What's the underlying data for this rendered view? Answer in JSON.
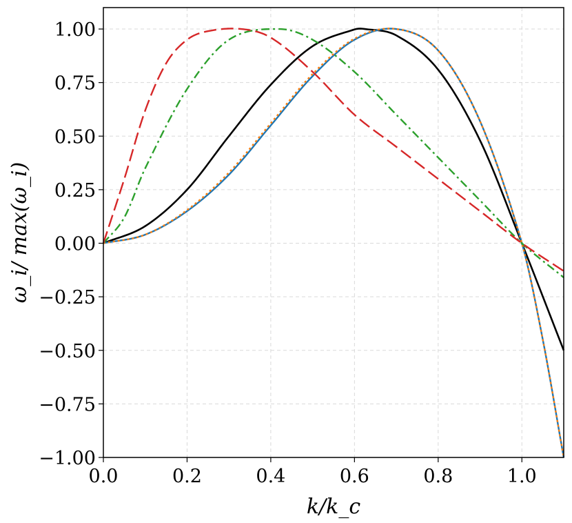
{
  "chart_data": {
    "type": "line",
    "title": "",
    "xlabel": "k/k_c",
    "ylabel": "ω_i/ max(ω_i)",
    "xlim": [
      0.0,
      1.1
    ],
    "ylim": [
      -1.0,
      1.1
    ],
    "xticks": [
      0.0,
      0.2,
      0.4,
      0.6,
      0.8,
      1.0
    ],
    "yticks": [
      -1.0,
      -0.75,
      -0.5,
      -0.25,
      0.0,
      0.25,
      0.5,
      0.75,
      1.0
    ],
    "xtick_labels": [
      "0.0",
      "0.2",
      "0.4",
      "0.6",
      "0.8",
      "1.0"
    ],
    "ytick_labels": [
      "−1.00",
      "−0.75",
      "−0.50",
      "−0.25",
      "0.00",
      "0.25",
      "0.50",
      "0.75",
      "1.00"
    ],
    "grid": true,
    "legend": "none",
    "series": [
      {
        "color": "#000000",
        "dash": "solid",
        "x": [
          0.0,
          0.1,
          0.2,
          0.3,
          0.4,
          0.5,
          0.6,
          0.625,
          0.7,
          0.8,
          0.9,
          1.0,
          1.1
        ],
        "y": [
          0.0,
          0.08,
          0.25,
          0.5,
          0.74,
          0.92,
          0.998,
          1.0,
          0.97,
          0.81,
          0.48,
          0.0,
          -0.5
        ]
      },
      {
        "color": "#1f77b4",
        "dash": "solid",
        "x": [
          0.0,
          0.1,
          0.2,
          0.3,
          0.4,
          0.5,
          0.6,
          0.7,
          0.8,
          0.9,
          1.0,
          1.05,
          1.1
        ],
        "y": [
          0.0,
          0.04,
          0.15,
          0.32,
          0.55,
          0.78,
          0.95,
          1.0,
          0.9,
          0.57,
          0.0,
          -0.45,
          -1.0
        ]
      },
      {
        "color": "#ff7f0e",
        "dash": "dotted",
        "x": [
          0.0,
          0.1,
          0.2,
          0.3,
          0.4,
          0.5,
          0.6,
          0.7,
          0.8,
          0.9,
          1.0,
          1.05,
          1.1
        ],
        "y": [
          0.0,
          0.04,
          0.155,
          0.33,
          0.56,
          0.79,
          0.955,
          1.0,
          0.9,
          0.57,
          0.0,
          -0.45,
          -1.0
        ]
      },
      {
        "color": "#2ca02c",
        "dash": "dashdot",
        "x": [
          0.0,
          0.05,
          0.1,
          0.2,
          0.3,
          0.42,
          0.5,
          0.6,
          0.7,
          0.8,
          0.9,
          1.0,
          1.1
        ],
        "y": [
          0.0,
          0.12,
          0.35,
          0.72,
          0.95,
          1.0,
          0.95,
          0.8,
          0.6,
          0.4,
          0.2,
          0.0,
          -0.16
        ]
      },
      {
        "color": "#d62728",
        "dash": "dashed",
        "x": [
          0.0,
          0.05,
          0.1,
          0.15,
          0.2,
          0.25,
          0.33,
          0.4,
          0.5,
          0.6,
          0.7,
          0.8,
          0.9,
          1.0,
          1.1
        ],
        "y": [
          0.0,
          0.3,
          0.62,
          0.84,
          0.95,
          0.99,
          1.0,
          0.96,
          0.8,
          0.6,
          0.45,
          0.3,
          0.15,
          0.0,
          -0.13
        ]
      }
    ]
  }
}
